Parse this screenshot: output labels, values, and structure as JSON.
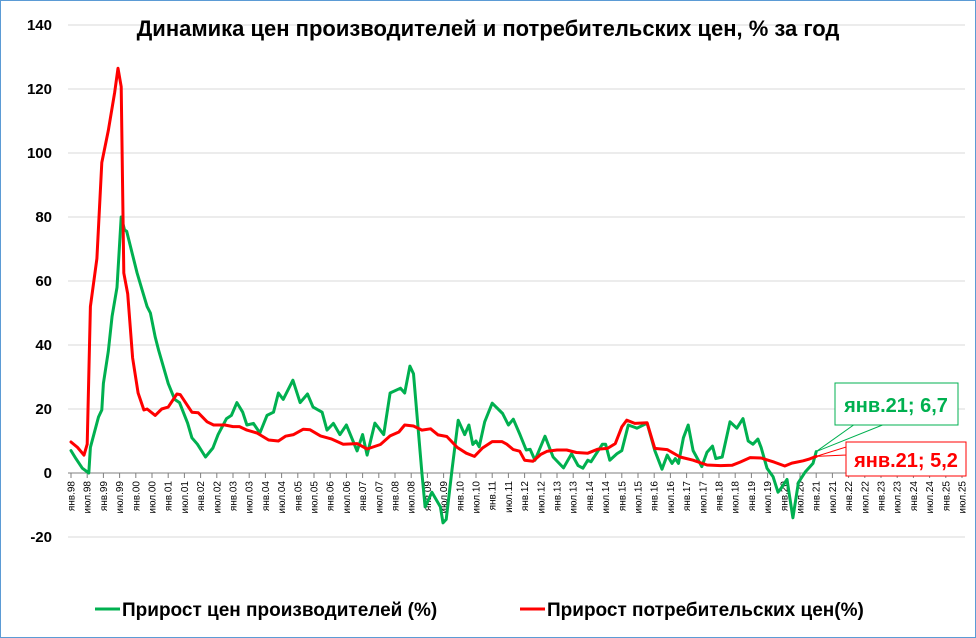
{
  "chart_data": {
    "type": "line",
    "title": "Динамика цен производителей и потребительских цен, % за год",
    "xlabel": "",
    "ylabel": "",
    "ylim": [
      -20,
      140
    ],
    "yticks": [
      "-20",
      "0",
      "20",
      "40",
      "60",
      "80",
      "100",
      "120",
      "140"
    ],
    "ytick_values": [
      -20,
      0,
      20,
      40,
      60,
      80,
      100,
      120,
      140
    ],
    "grid": true,
    "legend_position": "bottom",
    "x_range_years": [
      1998.0,
      2025.5
    ],
    "xticks": [
      "янв.98",
      "июл.98",
      "янв.99",
      "июл.99",
      "янв.00",
      "июл.00",
      "янв.01",
      "июл.01",
      "янв.02",
      "июл.02",
      "янв.03",
      "июл.03",
      "янв.04",
      "июл.04",
      "янв.05",
      "июл.05",
      "янв.06",
      "июл.06",
      "янв.07",
      "июл.07",
      "янв.08",
      "июл.08",
      "янв.09",
      "июл.09",
      "янв.10",
      "июл.10",
      "янв.11",
      "июл.11",
      "янв.12",
      "июл.12",
      "янв.13",
      "июл.13",
      "янв.14",
      "июл.14",
      "янв.15",
      "июл.15",
      "янв.16",
      "июл.16",
      "янв.17",
      "июл.17",
      "янв.18",
      "июл.18",
      "янв.19",
      "июл.19",
      "янв.20",
      "июл.20",
      "янв.21",
      "июл.21",
      "янв.22",
      "июл.22",
      "янв.23",
      "июл.23",
      "янв.24",
      "июл.24",
      "янв.25",
      "июл.25"
    ],
    "series": [
      {
        "name": "Прирост цен производителей (%)",
        "color": "#00b050",
        "points": [
          [
            1998.0,
            7
          ],
          [
            1998.15,
            4.5
          ],
          [
            1998.35,
            1.5
          ],
          [
            1998.55,
            0
          ],
          [
            1998.6,
            8
          ],
          [
            1998.85,
            17.5
          ],
          [
            1998.95,
            19.7
          ],
          [
            1999.0,
            28
          ],
          [
            1999.15,
            38
          ],
          [
            1999.27,
            49
          ],
          [
            1999.42,
            58
          ],
          [
            1999.55,
            80
          ],
          [
            1999.65,
            76
          ],
          [
            1999.72,
            75.5
          ],
          [
            2000.04,
            62.5
          ],
          [
            2000.2,
            57
          ],
          [
            2000.35,
            52
          ],
          [
            2000.45,
            50
          ],
          [
            2000.6,
            42.5
          ],
          [
            2000.7,
            38.5
          ],
          [
            2001.0,
            28
          ],
          [
            2001.2,
            23
          ],
          [
            2001.35,
            22
          ],
          [
            2001.6,
            15.6
          ],
          [
            2001.73,
            11
          ],
          [
            2001.9,
            9
          ],
          [
            2002.15,
            5
          ],
          [
            2002.38,
            7.8
          ],
          [
            2002.54,
            12
          ],
          [
            2002.8,
            17
          ],
          [
            2002.95,
            18
          ],
          [
            2003.12,
            22
          ],
          [
            2003.3,
            19
          ],
          [
            2003.43,
            15
          ],
          [
            2003.63,
            15.5
          ],
          [
            2003.83,
            12.5
          ],
          [
            2004.05,
            18
          ],
          [
            2004.25,
            19
          ],
          [
            2004.4,
            25
          ],
          [
            2004.55,
            23
          ],
          [
            2004.85,
            29
          ],
          [
            2005.07,
            22
          ],
          [
            2005.3,
            24.7
          ],
          [
            2005.47,
            20.6
          ],
          [
            2005.75,
            19
          ],
          [
            2005.9,
            13.4
          ],
          [
            2006.1,
            15.5
          ],
          [
            2006.3,
            12
          ],
          [
            2006.5,
            15
          ],
          [
            2006.83,
            6.9
          ],
          [
            2007.0,
            12
          ],
          [
            2007.14,
            5.6
          ],
          [
            2007.38,
            15.6
          ],
          [
            2007.65,
            12
          ],
          [
            2007.85,
            25
          ],
          [
            2008.17,
            26.5
          ],
          [
            2008.3,
            25
          ],
          [
            2008.46,
            33.4
          ],
          [
            2008.57,
            31
          ],
          [
            2008.83,
            0
          ],
          [
            2008.93,
            -10.6
          ],
          [
            2009.14,
            -6
          ],
          [
            2009.4,
            -10.6
          ],
          [
            2009.48,
            -15.6
          ],
          [
            2009.58,
            -14.5
          ],
          [
            2009.76,
            1
          ],
          [
            2009.95,
            16.5
          ],
          [
            2010.15,
            12
          ],
          [
            2010.28,
            15
          ],
          [
            2010.4,
            8.9
          ],
          [
            2010.5,
            10
          ],
          [
            2010.6,
            8.2
          ],
          [
            2010.77,
            16
          ],
          [
            2011.0,
            21.8
          ],
          [
            2011.32,
            18.6
          ],
          [
            2011.5,
            15
          ],
          [
            2011.65,
            16.8
          ],
          [
            2011.86,
            11.9
          ],
          [
            2012.05,
            7.2
          ],
          [
            2012.17,
            7.4
          ],
          [
            2012.32,
            4
          ],
          [
            2012.63,
            11.5
          ],
          [
            2012.88,
            5
          ],
          [
            2013.2,
            1.6
          ],
          [
            2013.45,
            6
          ],
          [
            2013.65,
            2.3
          ],
          [
            2013.8,
            1.5
          ],
          [
            2013.95,
            4
          ],
          [
            2014.05,
            3.5
          ],
          [
            2014.4,
            9
          ],
          [
            2014.5,
            9
          ],
          [
            2014.63,
            4
          ],
          [
            2014.85,
            6
          ],
          [
            2015.0,
            7
          ],
          [
            2015.2,
            15
          ],
          [
            2015.47,
            14
          ],
          [
            2015.78,
            15.6
          ],
          [
            2016.02,
            7
          ],
          [
            2016.24,
            1.2
          ],
          [
            2016.4,
            5.6
          ],
          [
            2016.55,
            3
          ],
          [
            2016.65,
            4.5
          ],
          [
            2016.75,
            3
          ],
          [
            2016.9,
            11
          ],
          [
            2017.05,
            15
          ],
          [
            2017.2,
            7
          ],
          [
            2017.47,
            2
          ],
          [
            2017.63,
            6.5
          ],
          [
            2017.8,
            8.4
          ],
          [
            2017.9,
            4.5
          ],
          [
            2018.1,
            5
          ],
          [
            2018.34,
            16
          ],
          [
            2018.55,
            14
          ],
          [
            2018.74,
            17
          ],
          [
            2018.9,
            10
          ],
          [
            2019.05,
            9
          ],
          [
            2019.2,
            10.6
          ],
          [
            2019.3,
            8
          ],
          [
            2019.48,
            1.5
          ],
          [
            2019.67,
            -1.2
          ],
          [
            2019.82,
            -6
          ],
          [
            2019.9,
            -5
          ],
          [
            2020.1,
            -2
          ],
          [
            2020.28,
            -14
          ],
          [
            2020.45,
            -3
          ],
          [
            2020.66,
            0.3
          ],
          [
            2020.9,
            3
          ],
          [
            2021.0,
            6.7
          ]
        ]
      },
      {
        "name": "Прирост потребительских цен(%)",
        "color": "#ff0000",
        "points": [
          [
            1998.0,
            9.7
          ],
          [
            1998.2,
            8
          ],
          [
            1998.4,
            5.6
          ],
          [
            1998.5,
            9
          ],
          [
            1998.6,
            52
          ],
          [
            1998.8,
            67
          ],
          [
            1998.95,
            97
          ],
          [
            1999.15,
            107
          ],
          [
            1999.35,
            119
          ],
          [
            1999.45,
            126.5
          ],
          [
            1999.55,
            120.7
          ],
          [
            1999.63,
            62.5
          ],
          [
            1999.75,
            56
          ],
          [
            1999.9,
            36
          ],
          [
            2000.07,
            25
          ],
          [
            2000.25,
            19.7
          ],
          [
            2000.35,
            20
          ],
          [
            2000.6,
            18
          ],
          [
            2000.8,
            20
          ],
          [
            2001.0,
            20.6
          ],
          [
            2001.27,
            24.7
          ],
          [
            2001.37,
            24.5
          ],
          [
            2001.73,
            19
          ],
          [
            2001.93,
            18.8
          ],
          [
            2002.2,
            16
          ],
          [
            2002.4,
            15
          ],
          [
            2002.75,
            15
          ],
          [
            2003.0,
            14.5
          ],
          [
            2003.2,
            14.5
          ],
          [
            2003.43,
            13.4
          ],
          [
            2003.74,
            12.5
          ],
          [
            2004.1,
            10.3
          ],
          [
            2004.4,
            10
          ],
          [
            2004.62,
            11.5
          ],
          [
            2004.87,
            12
          ],
          [
            2005.17,
            13.7
          ],
          [
            2005.38,
            13.5
          ],
          [
            2005.7,
            11.6
          ],
          [
            2006.05,
            10.6
          ],
          [
            2006.4,
            9
          ],
          [
            2006.83,
            9.2
          ],
          [
            2007.14,
            7.5
          ],
          [
            2007.55,
            8.9
          ],
          [
            2007.85,
            11.6
          ],
          [
            2008.12,
            12.8
          ],
          [
            2008.3,
            15
          ],
          [
            2008.57,
            14.7
          ],
          [
            2008.83,
            13.4
          ],
          [
            2009.1,
            13.8
          ],
          [
            2009.33,
            11.9
          ],
          [
            2009.6,
            11.4
          ],
          [
            2009.92,
            8
          ],
          [
            2010.2,
            6.2
          ],
          [
            2010.45,
            5.2
          ],
          [
            2010.7,
            7.8
          ],
          [
            2011.0,
            9.8
          ],
          [
            2011.3,
            9.8
          ],
          [
            2011.45,
            9
          ],
          [
            2011.65,
            7.3
          ],
          [
            2011.85,
            6.8
          ],
          [
            2012.0,
            4
          ],
          [
            2012.26,
            3.7
          ],
          [
            2012.5,
            5.8
          ],
          [
            2012.7,
            6.8
          ],
          [
            2013.0,
            7.2
          ],
          [
            2013.3,
            7.2
          ],
          [
            2013.6,
            6.4
          ],
          [
            2013.95,
            6.2
          ],
          [
            2014.25,
            7.4
          ],
          [
            2014.56,
            7.7
          ],
          [
            2014.8,
            9.2
          ],
          [
            2015.0,
            14.4
          ],
          [
            2015.15,
            16.5
          ],
          [
            2015.4,
            15.5
          ],
          [
            2015.78,
            15.7
          ],
          [
            2016.02,
            7.7
          ],
          [
            2016.4,
            7.3
          ],
          [
            2016.8,
            5
          ],
          [
            2017.2,
            4
          ],
          [
            2017.63,
            2.5
          ],
          [
            2018.05,
            2.3
          ],
          [
            2018.4,
            2.4
          ],
          [
            2018.65,
            3.4
          ],
          [
            2018.96,
            4.8
          ],
          [
            2019.3,
            4.7
          ],
          [
            2019.7,
            3.4
          ],
          [
            2020.03,
            2.2
          ],
          [
            2020.25,
            3.1
          ],
          [
            2020.6,
            3.8
          ],
          [
            2020.8,
            4.4
          ],
          [
            2021.0,
            5.2
          ]
        ]
      }
    ],
    "annotations": [
      {
        "label": "янв.21; 6,7",
        "x": 2021.0,
        "y": 6.7,
        "color": "#00b050"
      },
      {
        "label": "янв.21; 5,2",
        "x": 2021.0,
        "y": 5.2,
        "color": "#ff0000"
      }
    ]
  }
}
